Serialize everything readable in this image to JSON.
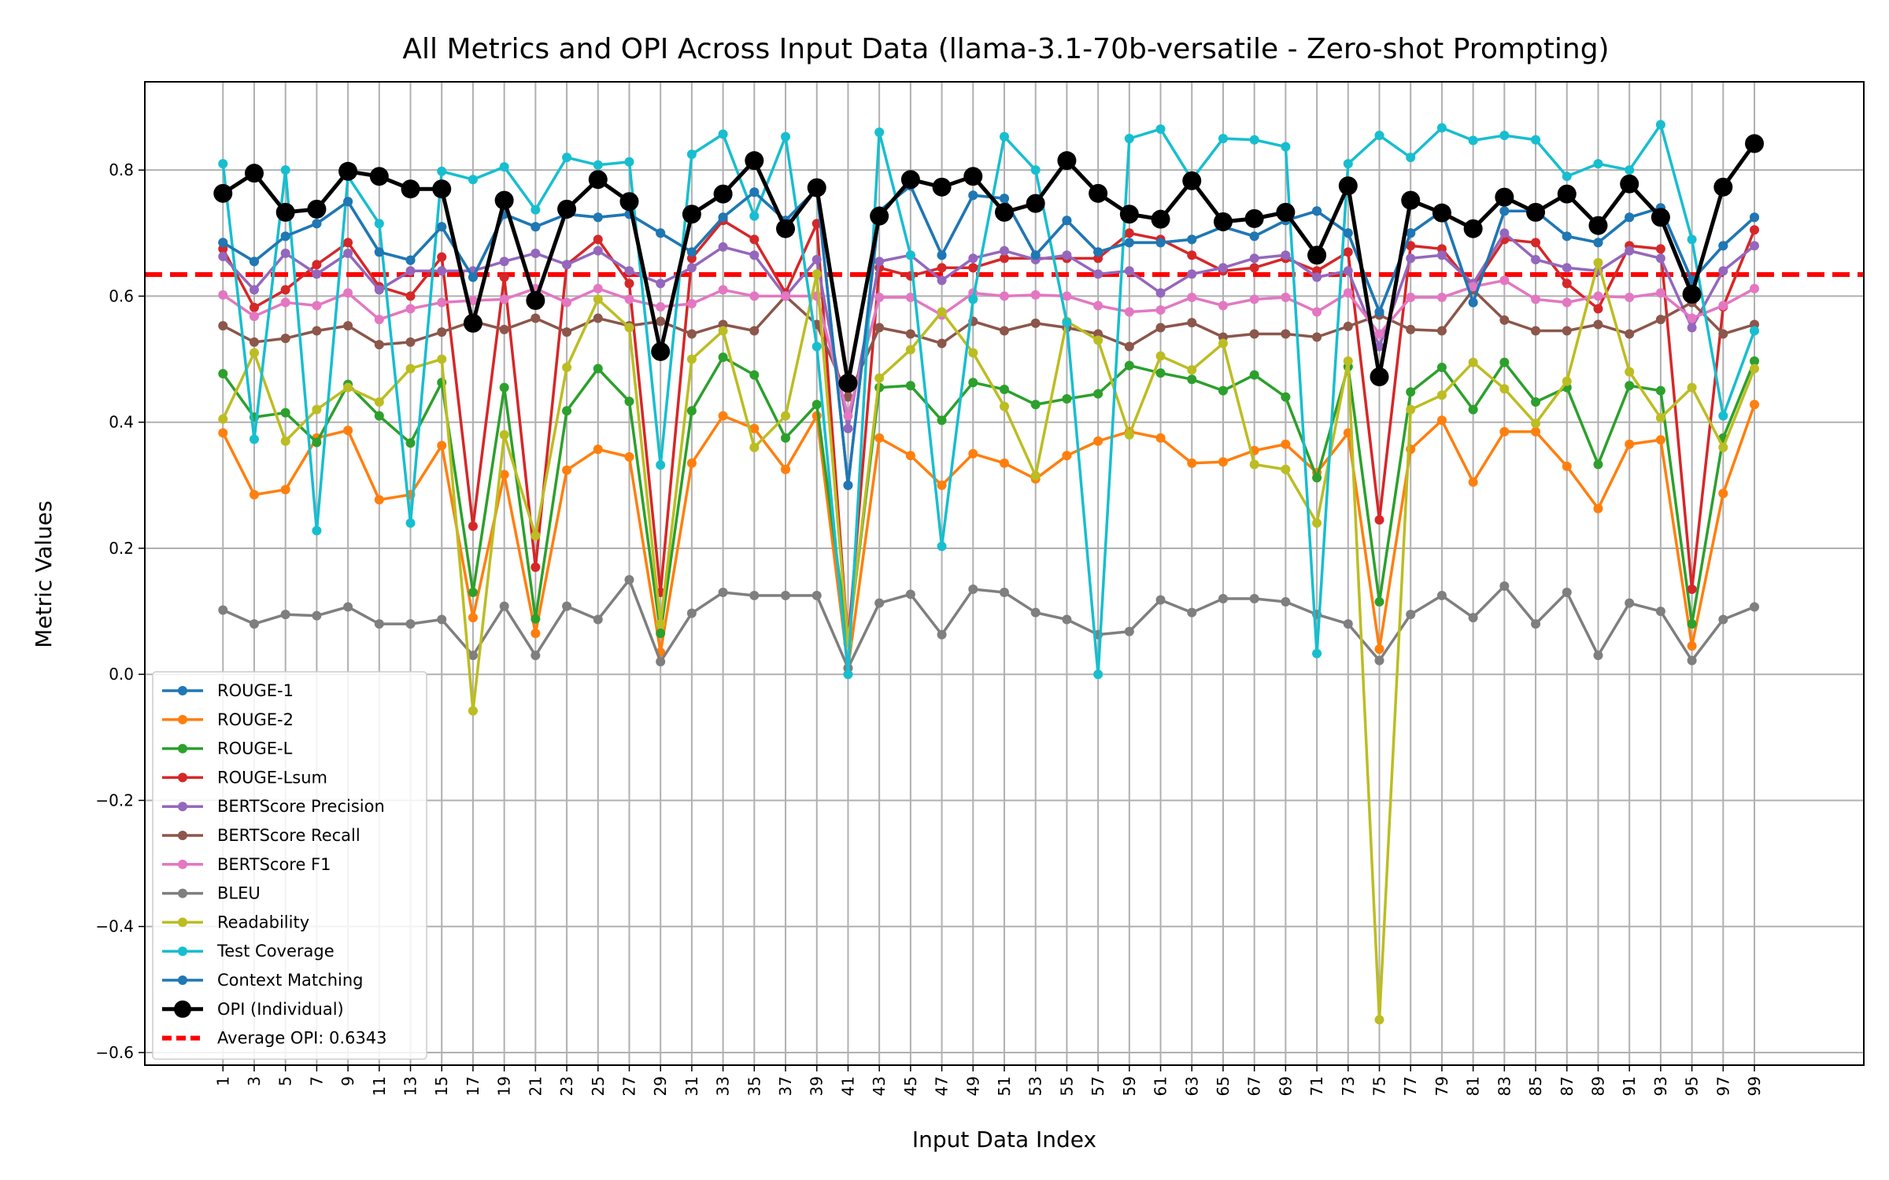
{
  "chart_data": {
    "type": "line",
    "title": "All Metrics and OPI Across Input Data (llama-3.1-70b-versatile - Zero-shot Prompting)",
    "xlabel": "Input Data Index",
    "ylabel": "Metric Values",
    "x": [
      1,
      3,
      5,
      7,
      9,
      11,
      13,
      15,
      17,
      19,
      21,
      23,
      25,
      27,
      29,
      31,
      33,
      35,
      37,
      39,
      41,
      43,
      45,
      47,
      49,
      51,
      53,
      55,
      57,
      59,
      61,
      63,
      65,
      67,
      69,
      71,
      73,
      75,
      77,
      79,
      81,
      83,
      85,
      87,
      89,
      91,
      93,
      95,
      97,
      99
    ],
    "xticks": [
      "1",
      "3",
      "5",
      "7",
      "9",
      "11",
      "13",
      "15",
      "17",
      "19",
      "21",
      "23",
      "25",
      "27",
      "29",
      "31",
      "33",
      "35",
      "37",
      "39",
      "41",
      "43",
      "45",
      "47",
      "49",
      "51",
      "53",
      "55",
      "57",
      "59",
      "61",
      "63",
      "65",
      "67",
      "69",
      "71",
      "73",
      "75",
      "77",
      "79",
      "81",
      "83",
      "85",
      "87",
      "89",
      "91",
      "93",
      "95",
      "97",
      "99"
    ],
    "yticks": [
      "−0.6",
      "−0.4",
      "−0.2",
      "0.0",
      "0.2",
      "0.4",
      "0.6",
      "0.8"
    ],
    "ylim": [
      -0.62,
      0.94
    ],
    "xlim": [
      -4,
      106
    ],
    "grid": true,
    "legend_position": "lower-left",
    "series": [
      {
        "name": "ROUGE-1",
        "color": "#1f77b4",
        "values": [
          0.685,
          0.655,
          0.695,
          0.715,
          0.75,
          0.67,
          0.657,
          0.71,
          0.63,
          0.73,
          0.71,
          0.73,
          0.725,
          0.73,
          0.7,
          0.67,
          0.725,
          0.765,
          0.72,
          0.77,
          0.3,
          0.735,
          0.775,
          0.665,
          0.76,
          0.755,
          0.665,
          0.72,
          0.67,
          0.685,
          0.685,
          0.69,
          0.71,
          0.695,
          0.72,
          0.735,
          0.7,
          0.575,
          0.7,
          0.735,
          0.59,
          0.735,
          0.735,
          0.695,
          0.685,
          0.725,
          0.74,
          0.625,
          0.68,
          0.725
        ]
      },
      {
        "name": "ROUGE-2",
        "color": "#ff7f0e",
        "values": [
          0.383,
          0.285,
          0.293,
          0.375,
          0.387,
          0.277,
          0.285,
          0.363,
          0.09,
          0.317,
          0.065,
          0.324,
          0.357,
          0.345,
          0.035,
          0.335,
          0.41,
          0.39,
          0.325,
          0.41,
          0.01,
          0.375,
          0.347,
          0.3,
          0.35,
          0.335,
          0.31,
          0.347,
          0.37,
          0.385,
          0.375,
          0.335,
          0.337,
          0.355,
          0.365,
          0.32,
          0.383,
          0.04,
          0.357,
          0.403,
          0.305,
          0.385,
          0.385,
          0.33,
          0.263,
          0.365,
          0.372,
          0.045,
          0.287,
          0.428
        ]
      },
      {
        "name": "ROUGE-L",
        "color": "#2ca02c",
        "values": [
          0.477,
          0.408,
          0.415,
          0.368,
          0.46,
          0.41,
          0.367,
          0.463,
          0.13,
          0.455,
          0.088,
          0.418,
          0.485,
          0.433,
          0.065,
          0.418,
          0.503,
          0.475,
          0.375,
          0.428,
          0.05,
          0.455,
          0.458,
          0.403,
          0.463,
          0.452,
          0.428,
          0.437,
          0.445,
          0.49,
          0.478,
          0.468,
          0.45,
          0.475,
          0.44,
          0.312,
          0.488,
          0.115,
          0.448,
          0.487,
          0.42,
          0.495,
          0.432,
          0.455,
          0.333,
          0.458,
          0.45,
          0.08,
          0.375,
          0.497
        ]
      },
      {
        "name": "ROUGE-Lsum",
        "color": "#d62728",
        "values": [
          0.675,
          0.582,
          0.61,
          0.65,
          0.685,
          0.615,
          0.6,
          0.662,
          0.235,
          0.63,
          0.17,
          0.65,
          0.69,
          0.62,
          0.13,
          0.66,
          0.72,
          0.69,
          0.605,
          0.715,
          0.05,
          0.645,
          0.632,
          0.645,
          0.645,
          0.66,
          0.66,
          0.66,
          0.66,
          0.7,
          0.69,
          0.665,
          0.64,
          0.645,
          0.66,
          0.64,
          0.67,
          0.245,
          0.68,
          0.675,
          0.615,
          0.69,
          0.685,
          0.62,
          0.58,
          0.68,
          0.675,
          0.135,
          0.583,
          0.705
        ]
      },
      {
        "name": "BERTScore Precision",
        "color": "#9467bd",
        "values": [
          0.663,
          0.61,
          0.668,
          0.635,
          0.668,
          0.61,
          0.64,
          0.64,
          0.64,
          0.655,
          0.668,
          0.65,
          0.672,
          0.64,
          0.62,
          0.645,
          0.678,
          0.665,
          0.6,
          0.658,
          0.39,
          0.655,
          0.665,
          0.625,
          0.66,
          0.672,
          0.658,
          0.665,
          0.635,
          0.64,
          0.605,
          0.635,
          0.645,
          0.66,
          0.665,
          0.63,
          0.64,
          0.52,
          0.66,
          0.665,
          0.62,
          0.7,
          0.658,
          0.645,
          0.64,
          0.672,
          0.66,
          0.55,
          0.64,
          0.68
        ]
      },
      {
        "name": "BERTScore Recall",
        "color": "#8c564b",
        "values": [
          0.553,
          0.527,
          0.533,
          0.545,
          0.553,
          0.523,
          0.527,
          0.543,
          0.56,
          0.547,
          0.565,
          0.543,
          0.565,
          0.553,
          0.56,
          0.54,
          0.555,
          0.545,
          0.6,
          0.555,
          0.44,
          0.55,
          0.54,
          0.525,
          0.56,
          0.545,
          0.557,
          0.55,
          0.54,
          0.52,
          0.55,
          0.558,
          0.535,
          0.54,
          0.54,
          0.535,
          0.552,
          0.57,
          0.547,
          0.545,
          0.61,
          0.562,
          0.545,
          0.545,
          0.555,
          0.54,
          0.563,
          0.59,
          0.54,
          0.555
        ]
      },
      {
        "name": "BERTScore F1",
        "color": "#e377c2",
        "values": [
          0.602,
          0.568,
          0.59,
          0.585,
          0.605,
          0.563,
          0.58,
          0.59,
          0.593,
          0.595,
          0.612,
          0.59,
          0.612,
          0.595,
          0.583,
          0.588,
          0.61,
          0.6,
          0.6,
          0.6,
          0.41,
          0.598,
          0.598,
          0.57,
          0.605,
          0.6,
          0.602,
          0.6,
          0.585,
          0.575,
          0.578,
          0.598,
          0.585,
          0.595,
          0.598,
          0.575,
          0.605,
          0.54,
          0.598,
          0.598,
          0.615,
          0.625,
          0.595,
          0.59,
          0.6,
          0.598,
          0.605,
          0.565,
          0.585,
          0.612
        ]
      },
      {
        "name": "BLEU",
        "color": "#7f7f7f",
        "values": [
          0.102,
          0.08,
          0.095,
          0.093,
          0.107,
          0.08,
          0.08,
          0.087,
          0.03,
          0.108,
          0.03,
          0.108,
          0.087,
          0.15,
          0.02,
          0.097,
          0.13,
          0.125,
          0.125,
          0.125,
          0.01,
          0.113,
          0.127,
          0.063,
          0.135,
          0.13,
          0.098,
          0.087,
          0.063,
          0.068,
          0.118,
          0.098,
          0.12,
          0.12,
          0.115,
          0.095,
          0.08,
          0.022,
          0.095,
          0.125,
          0.09,
          0.14,
          0.08,
          0.13,
          0.03,
          0.113,
          0.1,
          0.022,
          0.087,
          0.107
        ]
      },
      {
        "name": "Readability",
        "color": "#bcbd22",
        "values": [
          0.405,
          0.51,
          0.37,
          0.42,
          0.455,
          0.432,
          0.485,
          0.5,
          -0.058,
          0.38,
          0.22,
          0.487,
          0.595,
          0.55,
          0.08,
          0.5,
          0.545,
          0.36,
          0.41,
          0.635,
          0.05,
          0.47,
          0.515,
          0.575,
          0.51,
          0.425,
          0.315,
          0.56,
          0.53,
          0.38,
          0.505,
          0.483,
          0.525,
          0.333,
          0.325,
          0.24,
          0.497,
          -0.548,
          0.42,
          0.443,
          0.495,
          0.453,
          0.398,
          0.465,
          0.653,
          0.48,
          0.407,
          0.455,
          0.36,
          0.485
        ]
      },
      {
        "name": "Test Coverage",
        "color": "#17becf",
        "values": [
          0.81,
          0.373,
          0.8,
          0.228,
          0.79,
          0.715,
          0.24,
          0.798,
          0.785,
          0.805,
          0.737,
          0.82,
          0.808,
          0.813,
          0.332,
          0.825,
          0.857,
          0.727,
          0.853,
          0.52,
          0.0,
          0.86,
          0.665,
          0.203,
          0.595,
          0.853,
          0.8,
          0.558,
          0.0,
          0.85,
          0.865,
          0.785,
          0.85,
          0.848,
          0.837,
          0.033,
          0.81,
          0.855,
          0.82,
          0.867,
          0.847,
          0.855,
          0.848,
          0.79,
          0.81,
          0.8,
          0.872,
          0.69,
          0.41,
          0.545
        ]
      },
      {
        "name": "Context Matching",
        "color": "#1f77b4",
        "values": [
          0.685,
          0.655,
          0.695,
          0.715,
          0.75,
          0.67,
          0.657,
          0.71,
          0.63,
          0.73,
          0.71,
          0.73,
          0.725,
          0.73,
          0.7,
          0.67,
          0.725,
          0.765,
          0.72,
          0.77,
          0.3,
          0.735,
          0.775,
          0.665,
          0.76,
          0.755,
          0.665,
          0.72,
          0.67,
          0.685,
          0.685,
          0.69,
          0.71,
          0.695,
          0.72,
          0.735,
          0.7,
          0.575,
          0.7,
          0.735,
          0.59,
          0.735,
          0.735,
          0.695,
          0.685,
          0.725,
          0.74,
          0.625,
          0.68,
          0.725
        ]
      },
      {
        "name": "OPI (Individual)",
        "color": "#000000",
        "values": [
          0.763,
          0.795,
          0.733,
          0.738,
          0.798,
          0.79,
          0.77,
          0.77,
          0.557,
          0.752,
          0.593,
          0.738,
          0.785,
          0.75,
          0.512,
          0.73,
          0.762,
          0.815,
          0.707,
          0.772,
          0.462,
          0.727,
          0.785,
          0.773,
          0.79,
          0.733,
          0.747,
          0.815,
          0.763,
          0.73,
          0.722,
          0.783,
          0.718,
          0.723,
          0.733,
          0.665,
          0.775,
          0.472,
          0.752,
          0.732,
          0.707,
          0.757,
          0.733,
          0.762,
          0.712,
          0.778,
          0.725,
          0.603,
          0.773,
          0.842
        ]
      }
    ],
    "average_line": {
      "label": "Average OPI: 0.6343",
      "value": 0.6343,
      "color": "#ff0000"
    }
  }
}
